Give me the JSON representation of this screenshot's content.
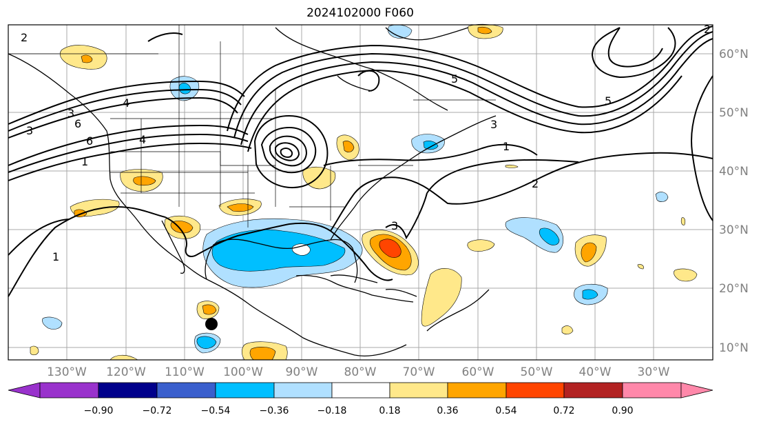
{
  "title": "2024102000 F060",
  "map": {
    "lon_labels": [
      "130°W",
      "120°W",
      "110°W",
      "100°W",
      "90°W",
      "80°W",
      "70°W",
      "60°W",
      "50°W",
      "40°W",
      "30°W"
    ],
    "lat_labels": [
      "60°N",
      "50°N",
      "40°N",
      "30°N",
      "20°N",
      "10°N"
    ],
    "contour_labels": [
      "2",
      "3",
      "6",
      "4",
      "4",
      "1",
      "6",
      "3",
      "5",
      "1",
      "2",
      "1",
      "3",
      "5",
      "2",
      "3"
    ],
    "marker": "storm-position-dot"
  },
  "colorbar": {
    "ticks": [
      "−0.90",
      "−0.72",
      "−0.54",
      "−0.36",
      "−0.18",
      "0.18",
      "0.36",
      "0.54",
      "0.72",
      "0.90"
    ],
    "colors": [
      "#9932cc",
      "#00008b",
      "#3a5fcd",
      "#00bfff",
      "#b0e0ff",
      "#ffffff",
      "#ffe88a",
      "#ffa500",
      "#ff4500",
      "#b22222",
      "#ff88aa"
    ]
  }
}
